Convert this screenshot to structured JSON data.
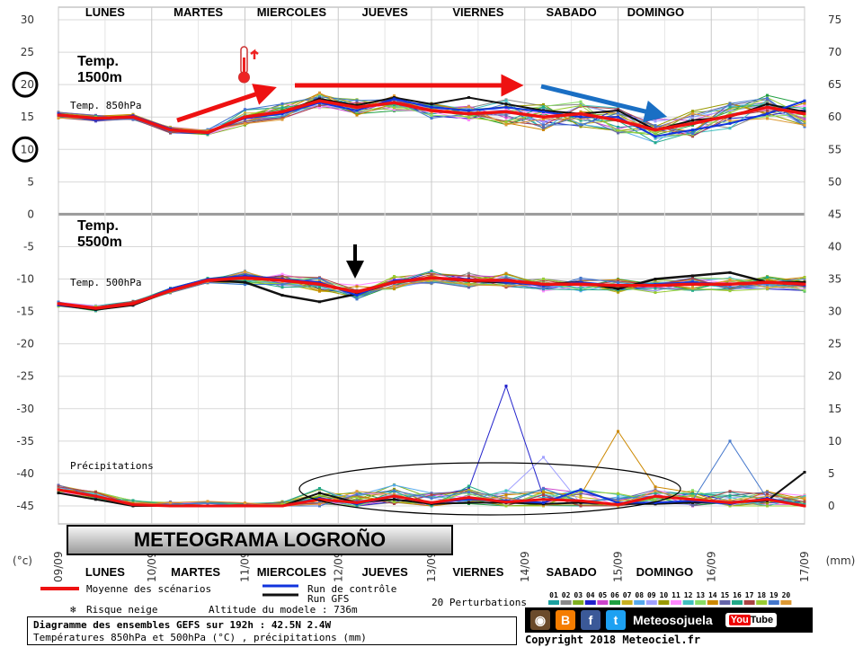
{
  "chart_data": {
    "type": "line",
    "x": [
      "09/09",
      "10/09",
      "11/09",
      "12/09",
      "13/09",
      "14/09",
      "15/09",
      "16/09",
      "17/09"
    ],
    "days_top": [
      "LUNES",
      "MARTES",
      "MIERCOLES",
      "JUEVES",
      "VIERNES",
      "SABADO",
      "DOMINGO"
    ],
    "days_bottom": [
      "LUNES",
      "MARTES",
      "MIERCOLES",
      "JUEVES",
      "VIERNES",
      "SABADO",
      "DOMINGO"
    ],
    "left_ticks": [
      30,
      25,
      20,
      15,
      10,
      5,
      0,
      -5,
      -10,
      -15,
      -20,
      -25,
      -30,
      -35,
      -40,
      -45
    ],
    "left_unit": "(°c)",
    "right_ticks_top": [
      75,
      70,
      65,
      60,
      55,
      50,
      45
    ],
    "right_ticks_bottom": [
      40,
      35,
      30,
      25,
      20,
      15,
      10,
      5,
      0
    ],
    "right_unit": "(mm)",
    "ylim_left": [
      -45,
      30
    ],
    "panel_labels": {
      "t850": "Temp. 850hPa",
      "t500": "Temp. 500hPa",
      "precip": "Précipitations"
    },
    "annotations": {
      "t1500": "Temp.",
      "t1500b": "1500m",
      "t5500": "Temp.",
      "t5500b": "5500m"
    },
    "t850": {
      "mean": [
        15.3,
        14.8,
        15,
        13,
        12.6,
        15,
        15.8,
        17.5,
        16.5,
        17.2,
        16,
        15.5,
        15.8,
        15,
        15.5,
        14.5,
        13,
        14,
        15.2,
        16.5,
        15.5
      ],
      "control": [
        15.5,
        14.5,
        15.2,
        13.2,
        12.5,
        14.8,
        15.5,
        17.2,
        16,
        17.8,
        16.5,
        16,
        16.5,
        15.8,
        15,
        15,
        12,
        13,
        14,
        15.5,
        17.5
      ],
      "gfs": [
        15.3,
        14.8,
        15,
        13,
        12.6,
        15,
        15.8,
        17.8,
        16.8,
        18,
        17,
        18,
        17,
        16,
        15.5,
        16,
        13,
        14.5,
        15,
        17,
        15.8
      ]
    },
    "t500": {
      "mean": [
        -13.8,
        -14.5,
        -13.8,
        -11.8,
        -10.2,
        -9.8,
        -10.2,
        -10.8,
        -12,
        -10.5,
        -9.8,
        -10.2,
        -10.2,
        -10.8,
        -10.8,
        -11,
        -11,
        -10.8,
        -10.8,
        -10.5,
        -10.8
      ],
      "control": [
        -14,
        -14.5,
        -13.8,
        -11.5,
        -10,
        -9.5,
        -10,
        -10.5,
        -12.5,
        -10.2,
        -9.8,
        -10,
        -10.5,
        -11,
        -10.5,
        -11,
        -10.8,
        -10.5,
        -10.8,
        -10.5,
        -11
      ],
      "gfs": [
        -14,
        -14.7,
        -14,
        -11.8,
        -10.2,
        -10.5,
        -12.5,
        -13.5,
        -12.3,
        -10.5,
        -9.8,
        -10.3,
        -10.5,
        -10.8,
        -10.5,
        -11.5,
        -10,
        -9.5,
        -9,
        -10.5,
        -10.5
      ]
    },
    "precip_mm": {
      "mean": [
        2.5,
        1.5,
        0.2,
        0,
        0,
        0,
        0,
        1,
        0.5,
        1.5,
        0.5,
        1.3,
        0.6,
        1,
        0.8,
        0.2,
        1.5,
        1,
        0.5,
        1,
        0
      ],
      "control": [
        2.5,
        1.5,
        0.2,
        0,
        0,
        0,
        0,
        1.2,
        0.3,
        1.5,
        0.5,
        1,
        0.8,
        0.5,
        2.5,
        0.5,
        0.5,
        0.8,
        0.3,
        1.2,
        0
      ],
      "gfs": [
        2,
        1,
        0,
        0,
        0,
        0,
        0,
        2,
        0.5,
        1,
        0.3,
        0.5,
        0.5,
        0.3,
        0.5,
        0.3,
        0.3,
        0.5,
        0.5,
        0.8,
        5.2
      ],
      "peaks": [
        {
          "i": 12,
          "v": 18.5
        },
        {
          "i": 13,
          "v": 7.5
        },
        {
          "i": 15,
          "v": 11.5
        },
        {
          "i": 18,
          "v": 10
        }
      ]
    },
    "members": 20,
    "grid": true
  },
  "legend": {
    "mean": "Moyenne des scénarios",
    "control": "Run de contrôle",
    "gfs": "Run GFS",
    "snow": "Risque neige",
    "altitude": "Altitude du modele : 736m",
    "perturb": "20 Perturbations",
    "perturb_nums": [
      "01",
      "02",
      "03",
      "04",
      "05",
      "06",
      "07",
      "08",
      "09",
      "10",
      "11",
      "12",
      "13",
      "14",
      "15",
      "16",
      "17",
      "18",
      "19",
      "20"
    ]
  },
  "colors": {
    "mean": "#ee1111",
    "control": "#1133dd",
    "gfs": "#111111",
    "arrow_red": "#ee1111",
    "arrow_blue": "#1a6fc4"
  },
  "banner": "METEOGRAMA LOGROÑO",
  "footer": {
    "line1": "Diagramme des ensembles GEFS sur 192h : 42.5N 2.4W",
    "line2": "Températures 850hPa et 500hPa (°C) , précipitations (mm)"
  },
  "social": {
    "brand": "Meteosojuela",
    "yt": "You",
    "yt2": "Tube"
  },
  "copyright": "Copyright 2018 Meteociel.fr"
}
